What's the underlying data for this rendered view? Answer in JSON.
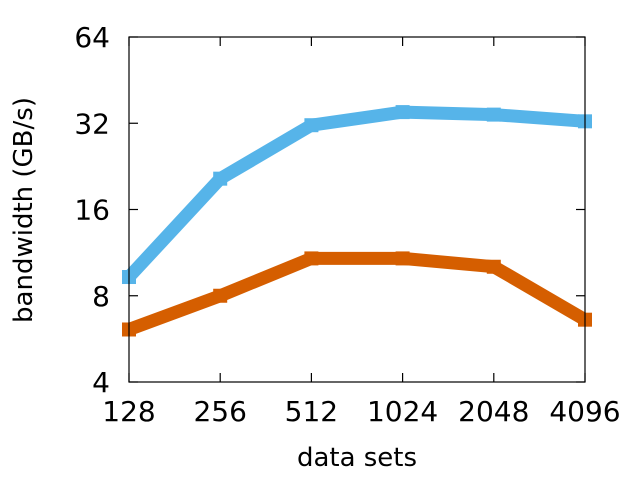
{
  "chart_data": {
    "type": "line",
    "title": "",
    "xlabel": "data sets",
    "ylabel": "bandwidth (GB/s)",
    "x_scale": "log2",
    "y_scale": "log2",
    "x": [
      128,
      256,
      512,
      1024,
      2048,
      4096
    ],
    "xticks": [
      "128",
      "256",
      "512",
      "1024",
      "2048",
      "4096"
    ],
    "yticks": [
      "4",
      "8",
      "16",
      "32",
      "64"
    ],
    "xlim": [
      128,
      4096
    ],
    "ylim": [
      4,
      64
    ],
    "grid": false,
    "legend": "none",
    "series": [
      {
        "color": "#56b4e9",
        "values": [
          9.3,
          20.5,
          31.5,
          35.0,
          34.3,
          32.5
        ]
      },
      {
        "color": "#d55e00",
        "values": [
          6.1,
          8.0,
          10.8,
          10.8,
          10.1,
          6.6
        ]
      }
    ]
  }
}
